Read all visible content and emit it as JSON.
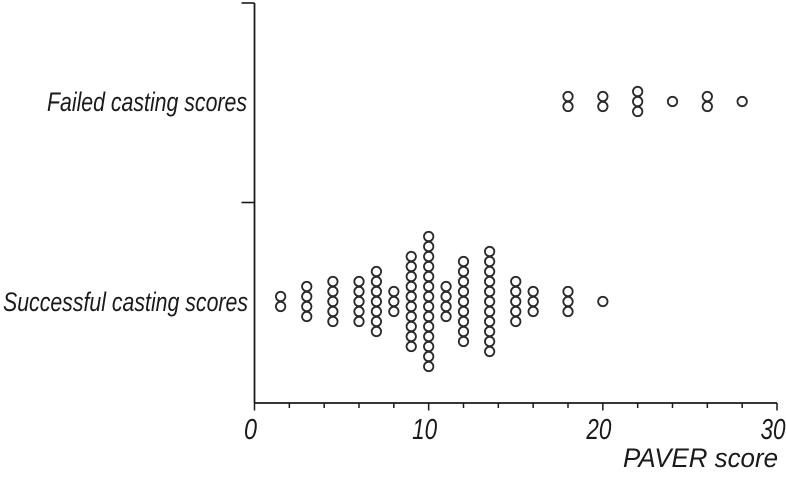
{
  "colors": {
    "background": "#ffffff",
    "axis": "#1a1a1a",
    "marker_stroke": "#2a2a2a",
    "marker_fill": "#ffffff"
  },
  "chart_data": {
    "type": "scatter",
    "subtype": "categorical-dot-plot",
    "title": "",
    "xlabel": "PAVER score",
    "ylabel": "",
    "xlim": [
      0,
      30
    ],
    "x_major_ticks": [
      0,
      10,
      20,
      30
    ],
    "x_major_tick_labels": [
      "0",
      "10",
      "20",
      "30"
    ],
    "x_minor_tick_step": 2,
    "grid": false,
    "legend_position": "none",
    "marker": "open-circle",
    "categories": [
      {
        "id": "failed",
        "label": "Failed casting scores",
        "points": [
          {
            "x": 18,
            "n": 2
          },
          {
            "x": 20,
            "n": 2
          },
          {
            "x": 22,
            "n": 3
          },
          {
            "x": 24,
            "n": 1
          },
          {
            "x": 26,
            "n": 2
          },
          {
            "x": 28,
            "n": 1
          }
        ]
      },
      {
        "id": "successful",
        "label": "Successful casting scores",
        "points": [
          {
            "x": 1.5,
            "n": 2
          },
          {
            "x": 3,
            "n": 4
          },
          {
            "x": 4.5,
            "n": 5
          },
          {
            "x": 6,
            "n": 5
          },
          {
            "x": 7,
            "n": 7
          },
          {
            "x": 8,
            "n": 3
          },
          {
            "x": 9,
            "n": 10
          },
          {
            "x": 10,
            "n": 14
          },
          {
            "x": 11,
            "n": 4
          },
          {
            "x": 12,
            "n": 9
          },
          {
            "x": 13.5,
            "n": 11
          },
          {
            "x": 15,
            "n": 5
          },
          {
            "x": 16,
            "n": 3
          },
          {
            "x": 18,
            "n": 3
          },
          {
            "x": 20,
            "n": 1
          }
        ]
      }
    ]
  }
}
